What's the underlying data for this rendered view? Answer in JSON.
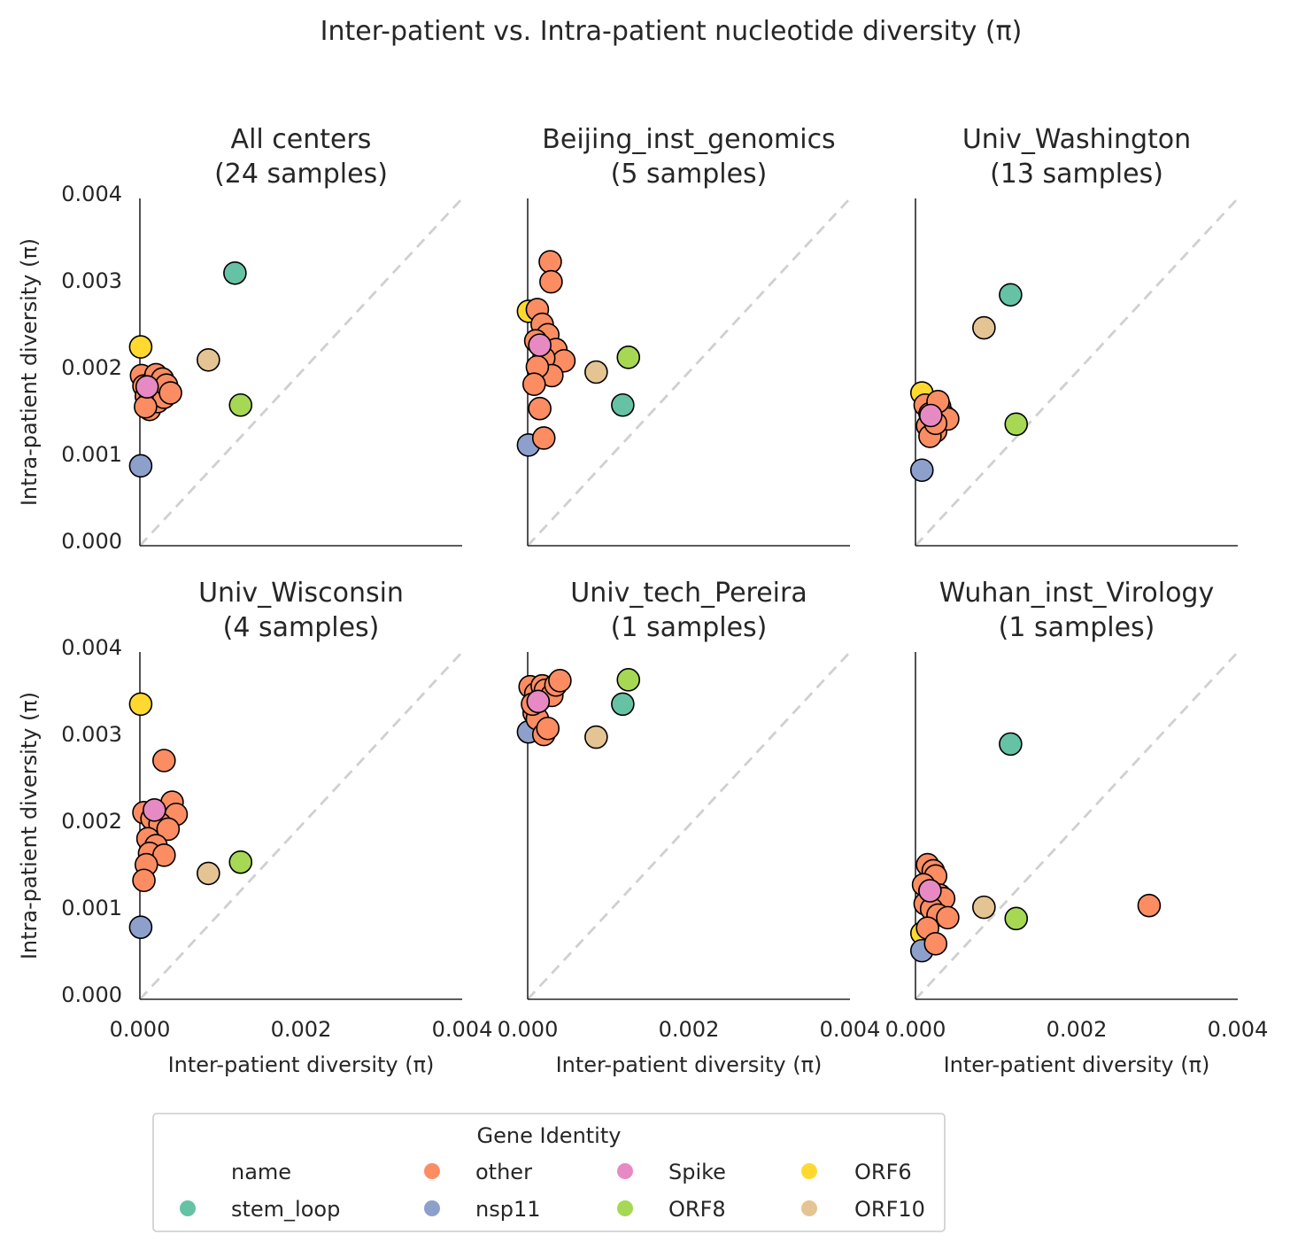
{
  "figure": {
    "title": "Inter-patient vs. Intra-patient nucleotide diversity (π)"
  },
  "colors": {
    "stem_loop": "#66c2a5",
    "other": "#fc8d62",
    "nsp11": "#8da0cb",
    "Spike": "#e78ac3",
    "ORF8": "#a6d854",
    "ORF6": "#ffd92f",
    "ORF10": "#e5c494",
    "diagonal": "#d0d0d0",
    "axis": "#262626",
    "marker_edge": "#000000"
  },
  "legend": {
    "title": "Gene Identity",
    "header": "name",
    "entries": [
      {
        "key": "stem_loop",
        "label": "stem_loop"
      },
      {
        "key": "other",
        "label": "other"
      },
      {
        "key": "nsp11",
        "label": "nsp11"
      },
      {
        "key": "Spike",
        "label": "Spike"
      },
      {
        "key": "ORF8",
        "label": "ORF8"
      },
      {
        "key": "ORF6",
        "label": "ORF6"
      },
      {
        "key": "ORF10",
        "label": "ORF10"
      }
    ]
  },
  "chart_data": [
    {
      "type": "scatter",
      "title": "All centers\n(24 samples)",
      "xlabel": "Inter-patient diversity (π)",
      "ylabel": "Intra-patient diversity (π)",
      "xlim": [
        0,
        0.004
      ],
      "ylim": [
        0,
        0.004
      ],
      "xticks": [
        "0.000",
        "0.002",
        "0.004"
      ],
      "yticks": [
        "0.000",
        "0.001",
        "0.002",
        "0.003",
        "0.004"
      ],
      "reference_line": "y = x (dashed)",
      "series": [
        {
          "name": "stem_loop",
          "points": [
            [
              0.00118,
              0.00314
            ]
          ]
        },
        {
          "name": "ORF6",
          "points": [
            [
              1e-05,
              0.00229
            ]
          ]
        },
        {
          "name": "ORF10",
          "points": [
            [
              0.00085,
              0.00214
            ]
          ]
        },
        {
          "name": "ORF8",
          "points": [
            [
              0.00125,
              0.00162
            ]
          ]
        },
        {
          "name": "nsp11",
          "points": [
            [
              1e-05,
              0.00092
            ]
          ]
        },
        {
          "name": "other",
          "points": [
            [
              2e-05,
              0.00196
            ],
            [
              5e-05,
              0.00184
            ],
            [
              8e-05,
              0.00172
            ],
            [
              0.0001,
              0.00163
            ],
            [
              0.00012,
              0.00157
            ],
            [
              0.00015,
              0.00188
            ],
            [
              0.00018,
              0.00176
            ],
            [
              0.0002,
              0.00197
            ],
            [
              0.00022,
              0.00166
            ],
            [
              0.00025,
              0.00182
            ],
            [
              0.00028,
              0.00192
            ],
            [
              0.0003,
              0.00171
            ],
            [
              0.00033,
              0.00185
            ],
            [
              0.00038,
              0.00176
            ],
            [
              7e-05,
              0.0016
            ]
          ]
        },
        {
          "name": "Spike",
          "points": [
            [
              9e-05,
              0.00183
            ]
          ]
        }
      ]
    },
    {
      "type": "scatter",
      "title": "Beijing_inst_genomics\n(5 samples)",
      "xlabel": "Inter-patient diversity (π)",
      "ylabel": "Intra-patient diversity (π)",
      "xlim": [
        0,
        0.004
      ],
      "ylim": [
        0,
        0.004
      ],
      "xticks": [
        "0.000",
        "0.002",
        "0.004"
      ],
      "yticks": [
        "0.000",
        "0.001",
        "0.002",
        "0.003",
        "0.004"
      ],
      "reference_line": "y = x (dashed)",
      "series": [
        {
          "name": "stem_loop",
          "points": [
            [
              0.00118,
              0.00162
            ]
          ]
        },
        {
          "name": "ORF6",
          "points": [
            [
              1e-05,
              0.0027
            ]
          ]
        },
        {
          "name": "ORF10",
          "points": [
            [
              0.00085,
              0.002
            ]
          ]
        },
        {
          "name": "ORF8",
          "points": [
            [
              0.00125,
              0.00217
            ]
          ]
        },
        {
          "name": "nsp11",
          "points": [
            [
              1e-05,
              0.00116
            ]
          ]
        },
        {
          "name": "other",
          "points": [
            [
              0.00028,
              0.00327
            ],
            [
              0.00029,
              0.00304
            ],
            [
              0.00012,
              0.00272
            ],
            [
              0.00018,
              0.00255
            ],
            [
              0.00025,
              0.00243
            ],
            [
              0.00035,
              0.00226
            ],
            [
              0.00045,
              0.00213
            ],
            [
              0.0002,
              0.00216
            ],
            [
              0.0003,
              0.00196
            ],
            [
              0.00012,
              0.00206
            ],
            [
              8e-05,
              0.00186
            ],
            [
              0.00015,
              0.00158
            ],
            [
              0.0002,
              0.00124
            ],
            [
              0.0001,
              0.00236
            ]
          ]
        },
        {
          "name": "Spike",
          "points": [
            [
              0.00015,
              0.00231
            ]
          ]
        }
      ]
    },
    {
      "type": "scatter",
      "title": "Univ_Washington\n(13 samples)",
      "xlabel": "Inter-patient diversity (π)",
      "ylabel": "Intra-patient diversity (π)",
      "xlim": [
        0,
        0.004
      ],
      "ylim": [
        0,
        0.004
      ],
      "xticks": [
        "0.000",
        "0.002",
        "0.004"
      ],
      "yticks": [
        "0.000",
        "0.001",
        "0.002",
        "0.003",
        "0.004"
      ],
      "reference_line": "y = x (dashed)",
      "series": [
        {
          "name": "stem_loop",
          "points": [
            [
              0.00118,
              0.00289
            ]
          ]
        },
        {
          "name": "ORF6",
          "points": [
            [
              8e-05,
              0.00176
            ]
          ]
        },
        {
          "name": "ORF10",
          "points": [
            [
              0.00085,
              0.00251
            ]
          ]
        },
        {
          "name": "ORF8",
          "points": [
            [
              0.00125,
              0.0014
            ]
          ]
        },
        {
          "name": "nsp11",
          "points": [
            [
              8e-05,
              0.00087
            ]
          ]
        },
        {
          "name": "other",
          "points": [
            [
              0.00012,
              0.00162
            ],
            [
              0.00018,
              0.00152
            ],
            [
              0.00022,
              0.00145
            ],
            [
              0.00015,
              0.00138
            ],
            [
              0.00025,
              0.00132
            ],
            [
              0.0003,
              0.0016
            ],
            [
              0.00035,
              0.0015
            ],
            [
              0.0004,
              0.00146
            ],
            [
              0.00018,
              0.00126
            ],
            [
              0.00025,
              0.00141
            ],
            [
              0.00028,
              0.00166
            ]
          ]
        },
        {
          "name": "Spike",
          "points": [
            [
              0.00019,
              0.0015
            ]
          ]
        }
      ]
    },
    {
      "type": "scatter",
      "title": "Univ_Wisconsin\n(4 samples)",
      "xlabel": "Inter-patient diversity (π)",
      "ylabel": "Intra-patient diversity (π)",
      "xlim": [
        0,
        0.004
      ],
      "ylim": [
        0,
        0.004
      ],
      "xticks": [
        "0.000",
        "0.002",
        "0.004"
      ],
      "yticks": [
        "0.000",
        "0.001",
        "0.002",
        "0.003",
        "0.004"
      ],
      "reference_line": "y = x (dashed)",
      "series": [
        {
          "name": "stem_loop",
          "points": []
        },
        {
          "name": "ORF6",
          "points": [
            [
              1e-05,
              0.0034
            ]
          ]
        },
        {
          "name": "ORF10",
          "points": [
            [
              0.00085,
              0.00145
            ]
          ]
        },
        {
          "name": "ORF8",
          "points": [
            [
              0.00125,
              0.00158
            ]
          ]
        },
        {
          "name": "nsp11",
          "points": [
            [
              1e-05,
              0.00083
            ]
          ]
        },
        {
          "name": "other",
          "points": [
            [
              0.0003,
              0.00275
            ],
            [
              0.0004,
              0.00227
            ],
            [
              0.00045,
              0.00213
            ],
            [
              5e-05,
              0.00215
            ],
            [
              0.00015,
              0.00208
            ],
            [
              0.00025,
              0.00202
            ],
            [
              0.00035,
              0.00196
            ],
            [
              0.0001,
              0.00185
            ],
            [
              0.0002,
              0.00177
            ],
            [
              0.00012,
              0.00168
            ],
            [
              0.0003,
              0.00166
            ],
            [
              8e-05,
              0.00155
            ],
            [
              5e-05,
              0.00137
            ]
          ]
        },
        {
          "name": "Spike",
          "points": [
            [
              0.00018,
              0.00218
            ]
          ]
        }
      ]
    },
    {
      "type": "scatter",
      "title": "Univ_tech_Pereira\n(1 samples)",
      "xlabel": "Inter-patient diversity (π)",
      "ylabel": "Intra-patient diversity (π)",
      "xlim": [
        0,
        0.004
      ],
      "ylim": [
        0,
        0.004
      ],
      "xticks": [
        "0.000",
        "0.002",
        "0.004"
      ],
      "yticks": [
        "0.000",
        "0.001",
        "0.002",
        "0.003",
        "0.004"
      ],
      "reference_line": "y = x (dashed)",
      "series": [
        {
          "name": "stem_loop",
          "points": [
            [
              0.00118,
              0.0034
            ]
          ]
        },
        {
          "name": "ORF6",
          "points": []
        },
        {
          "name": "ORF10",
          "points": [
            [
              0.00085,
              0.00302
            ]
          ]
        },
        {
          "name": "ORF8",
          "points": [
            [
              0.00125,
              0.00368
            ]
          ]
        },
        {
          "name": "nsp11",
          "points": [
            [
              1e-05,
              0.00308
            ]
          ]
        },
        {
          "name": "other",
          "points": [
            [
              3e-05,
              0.0036
            ],
            [
              0.0001,
              0.00352
            ],
            [
              0.00015,
              0.00345
            ],
            [
              0.00018,
              0.00361
            ],
            [
              0.00022,
              0.00356
            ],
            [
              0.0003,
              0.0035
            ],
            [
              0.00035,
              0.00362
            ],
            [
              0.0004,
              0.00367
            ],
            [
              8e-05,
              0.0033
            ],
            [
              0.00012,
              0.00323
            ],
            [
              0.0002,
              0.00305
            ],
            [
              0.00025,
              0.00312
            ],
            [
              6e-05,
              0.0034
            ]
          ]
        },
        {
          "name": "Spike",
          "points": [
            [
              0.00013,
              0.00343
            ]
          ]
        }
      ]
    },
    {
      "type": "scatter",
      "title": "Wuhan_inst_Virology\n(1 samples)",
      "xlabel": "Inter-patient diversity (π)",
      "ylabel": "Intra-patient diversity (π)",
      "xlim": [
        0,
        0.004
      ],
      "ylim": [
        0,
        0.004
      ],
      "xticks": [
        "0.000",
        "0.002",
        "0.004"
      ],
      "yticks": [
        "0.000",
        "0.001",
        "0.002",
        "0.003",
        "0.004"
      ],
      "reference_line": "y = x (dashed)",
      "series": [
        {
          "name": "stem_loop",
          "points": [
            [
              0.00118,
              0.00294
            ]
          ]
        },
        {
          "name": "ORF6",
          "points": [
            [
              8e-05,
              0.00076
            ]
          ]
        },
        {
          "name": "ORF10",
          "points": [
            [
              0.00085,
              0.00106
            ]
          ]
        },
        {
          "name": "ORF8",
          "points": [
            [
              0.00125,
              0.00093
            ]
          ]
        },
        {
          "name": "nsp11",
          "points": [
            [
              8e-05,
              0.00056
            ]
          ]
        },
        {
          "name": "other",
          "points": [
            [
              0.0029,
              0.00108
            ],
            [
              0.00015,
              0.00155
            ],
            [
              0.00022,
              0.00148
            ],
            [
              0.00025,
              0.00142
            ],
            [
              0.0001,
              0.00132
            ],
            [
              0.00018,
              0.00125
            ],
            [
              0.0003,
              0.0012
            ],
            [
              0.00035,
              0.00116
            ],
            [
              0.00012,
              0.0011
            ],
            [
              0.0002,
              0.00104
            ],
            [
              0.00028,
              0.00097
            ],
            [
              0.0004,
              0.00094
            ],
            [
              0.00015,
              0.00082
            ],
            [
              0.00025,
              0.00064
            ]
          ]
        },
        {
          "name": "Spike",
          "points": [
            [
              0.00018,
              0.00125
            ]
          ]
        }
      ]
    }
  ]
}
